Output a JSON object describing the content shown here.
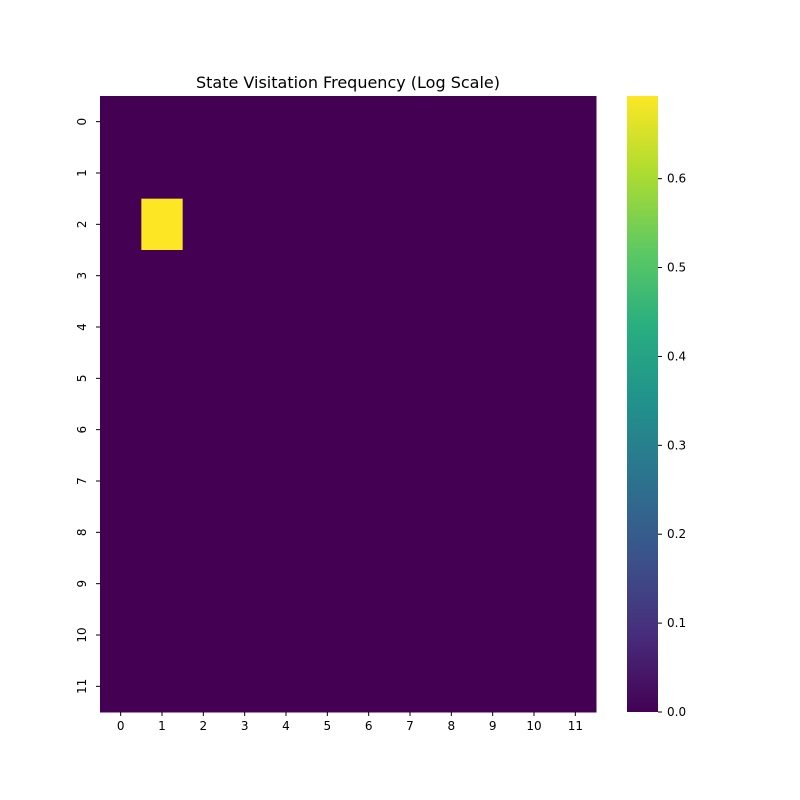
{
  "chart_data": {
    "type": "heatmap",
    "title": "State Visitation Frequency (Log Scale)",
    "x_tick_labels": [
      "0",
      "1",
      "2",
      "3",
      "4",
      "5",
      "6",
      "7",
      "8",
      "9",
      "10",
      "11"
    ],
    "y_tick_labels": [
      "0",
      "1",
      "2",
      "3",
      "4",
      "5",
      "6",
      "7",
      "8",
      "9",
      "10",
      "11"
    ],
    "values": [
      [
        0,
        0,
        0,
        0,
        0,
        0,
        0,
        0,
        0,
        0,
        0,
        0
      ],
      [
        0,
        0,
        0,
        0,
        0,
        0,
        0,
        0,
        0,
        0,
        0,
        0
      ],
      [
        0,
        0.693,
        0,
        0,
        0,
        0,
        0,
        0,
        0,
        0,
        0,
        0
      ],
      [
        0,
        0,
        0,
        0,
        0,
        0,
        0,
        0,
        0,
        0,
        0,
        0
      ],
      [
        0,
        0,
        0,
        0,
        0,
        0,
        0,
        0,
        0,
        0,
        0,
        0
      ],
      [
        0,
        0,
        0,
        0,
        0,
        0,
        0,
        0,
        0,
        0,
        0,
        0
      ],
      [
        0,
        0,
        0,
        0,
        0,
        0,
        0,
        0,
        0,
        0,
        0,
        0
      ],
      [
        0,
        0,
        0,
        0,
        0,
        0,
        0,
        0,
        0,
        0,
        0,
        0
      ],
      [
        0,
        0,
        0,
        0,
        0,
        0,
        0,
        0,
        0,
        0,
        0,
        0
      ],
      [
        0,
        0,
        0,
        0,
        0,
        0,
        0,
        0,
        0,
        0,
        0,
        0
      ],
      [
        0,
        0,
        0,
        0,
        0,
        0,
        0,
        0,
        0,
        0,
        0,
        0
      ],
      [
        0,
        0,
        0,
        0,
        0,
        0,
        0,
        0,
        0,
        0,
        0,
        0
      ]
    ],
    "colormap": "viridis",
    "color_range": [
      0,
      0.693
    ],
    "colorbar_ticks": [
      "0.0",
      "0.1",
      "0.2",
      "0.3",
      "0.4",
      "0.5",
      "0.6"
    ],
    "colorbar_tick_values": [
      0,
      0.1,
      0.2,
      0.3,
      0.4,
      0.5,
      0.6
    ],
    "grid": false,
    "colorbar_placement": "right"
  }
}
